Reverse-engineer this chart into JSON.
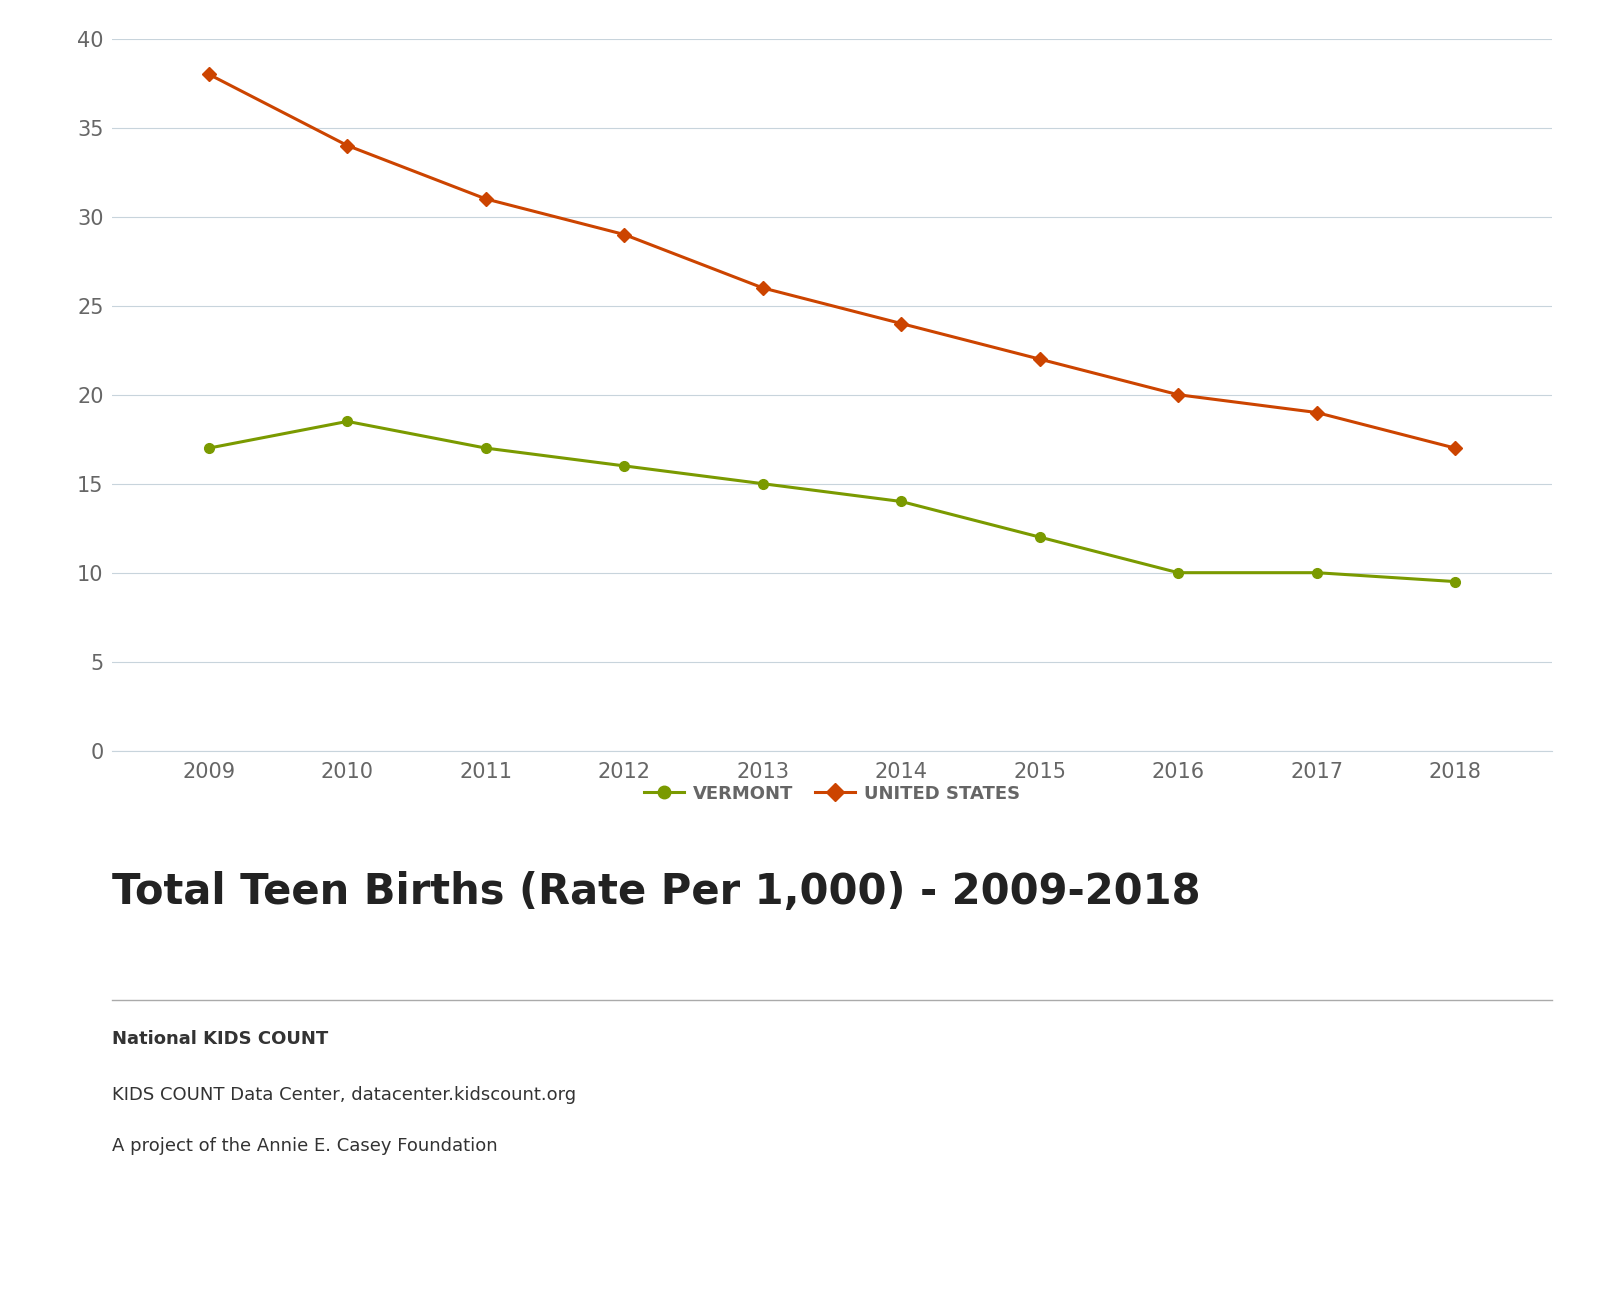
{
  "years": [
    2009,
    2010,
    2011,
    2012,
    2013,
    2014,
    2015,
    2016,
    2017,
    2018
  ],
  "vermont": [
    17,
    18.5,
    17,
    16,
    15,
    14,
    12,
    10,
    10,
    9.5
  ],
  "us": [
    38,
    34,
    31,
    29,
    26,
    24,
    22,
    20,
    19,
    17
  ],
  "vermont_color": "#7a9a00",
  "us_color": "#cc4400",
  "vermont_label": "VERMONT",
  "us_label": "UNITED STATES",
  "title": "Total Teen Births (Rate Per 1,000) - 2009-2018",
  "source_line1": "National KIDS COUNT",
  "source_line2": "KIDS COUNT Data Center, datacenter.kidscount.org",
  "source_line3": "A project of the Annie E. Casey Foundation",
  "ylim": [
    0,
    40
  ],
  "yticks": [
    0,
    5,
    10,
    15,
    20,
    25,
    30,
    35,
    40
  ],
  "background_color": "#ffffff",
  "grid_color": "#c8d4dc",
  "tick_label_color": "#666666",
  "title_color": "#222222",
  "source_color": "#333333",
  "separator_color": "#aaaaaa"
}
